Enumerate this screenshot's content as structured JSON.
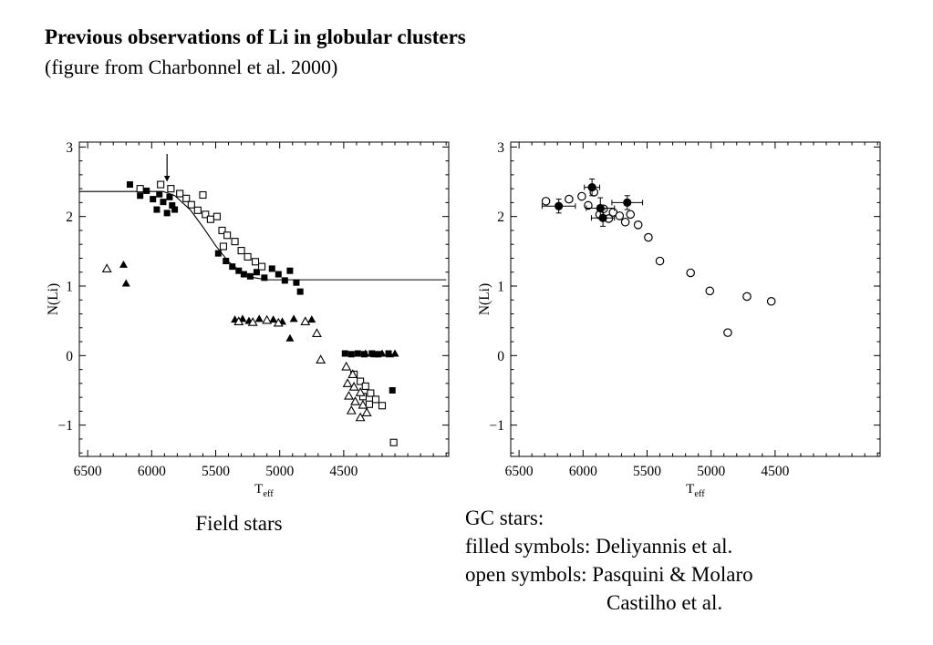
{
  "slide": {
    "title": "Previous observations of Li in globular clusters",
    "subtitle": "(figure from Charbonnel et al. 2000)"
  },
  "captions": {
    "left": "Field stars",
    "right_lines": [
      "GC stars:",
      "filled symbols: Deliyannis et al.",
      "open symbols: Pasquini & Molaro",
      "Castilho et al."
    ]
  },
  "chart_data": [
    {
      "type": "scatter",
      "name": "field-stars",
      "title": "",
      "xlabel": "T",
      "xlabel_sub": "eff",
      "ylabel": "N(Li)",
      "xlim": [
        6565,
        3680
      ],
      "ylim": [
        -1.45,
        3.07
      ],
      "xticks": [
        6500,
        6000,
        5500,
        5000,
        4500
      ],
      "yticks": [
        -1,
        0,
        1,
        2,
        3
      ],
      "grid": false,
      "series": [
        {
          "name": "filled squares",
          "symbol": "filled-square",
          "points": [
            [
              6170,
              2.46
            ],
            [
              6090,
              2.3
            ],
            [
              6040,
              2.37
            ],
            [
              5990,
              2.25
            ],
            [
              5960,
              2.1
            ],
            [
              5940,
              2.32
            ],
            [
              5910,
              2.21
            ],
            [
              5880,
              2.05
            ],
            [
              5860,
              2.28
            ],
            [
              5840,
              2.16
            ],
            [
              5820,
              2.1
            ],
            [
              5480,
              1.47
            ],
            [
              5420,
              1.36
            ],
            [
              5370,
              1.28
            ],
            [
              5320,
              1.22
            ],
            [
              5280,
              1.17
            ],
            [
              5230,
              1.14
            ],
            [
              5180,
              1.2
            ],
            [
              5120,
              1.12
            ],
            [
              5060,
              1.25
            ],
            [
              5010,
              1.17
            ],
            [
              4960,
              1.08
            ],
            [
              4920,
              1.22
            ],
            [
              4870,
              1.05
            ],
            [
              4840,
              0.92
            ],
            [
              4490,
              0.03
            ],
            [
              4440,
              0.02
            ],
            [
              4390,
              0.03
            ],
            [
              4340,
              0.02
            ],
            [
              4280,
              0.03
            ],
            [
              4230,
              0.02
            ],
            [
              4150,
              0.03
            ],
            [
              4120,
              -0.5
            ]
          ]
        },
        {
          "name": "open squares",
          "symbol": "open-square",
          "points": [
            [
              6090,
              2.4
            ],
            [
              5930,
              2.46
            ],
            [
              5850,
              2.4
            ],
            [
              5780,
              2.33
            ],
            [
              5730,
              2.26
            ],
            [
              5690,
              2.17
            ],
            [
              5640,
              2.09
            ],
            [
              5600,
              2.31
            ],
            [
              5580,
              2.03
            ],
            [
              5540,
              1.96
            ],
            [
              5490,
              2.0
            ],
            [
              5450,
              1.8
            ],
            [
              5410,
              1.73
            ],
            [
              5440,
              1.57
            ],
            [
              5350,
              1.64
            ],
            [
              5300,
              1.51
            ],
            [
              5250,
              1.42
            ],
            [
              5190,
              1.35
            ],
            [
              5140,
              1.28
            ],
            [
              4420,
              -0.27
            ],
            [
              4370,
              -0.37
            ],
            [
              4330,
              -0.44
            ],
            [
              4290,
              -0.54
            ],
            [
              4350,
              -0.59
            ],
            [
              4300,
              -0.7
            ],
            [
              4250,
              -0.63
            ],
            [
              4200,
              -0.72
            ],
            [
              4110,
              -1.25
            ]
          ]
        },
        {
          "name": "filled triangles",
          "symbol": "filled-triangle",
          "points": [
            [
              6220,
              1.31
            ],
            [
              6200,
              1.04
            ],
            [
              5350,
              0.52
            ],
            [
              5290,
              0.53
            ],
            [
              5240,
              0.5
            ],
            [
              5160,
              0.53
            ],
            [
              5050,
              0.52
            ],
            [
              4980,
              0.49
            ],
            [
              4890,
              0.53
            ],
            [
              4750,
              0.52
            ],
            [
              4920,
              0.25
            ],
            [
              4330,
              0.03
            ],
            [
              4260,
              0.02
            ],
            [
              4200,
              0.03
            ],
            [
              4140,
              0.02
            ],
            [
              4100,
              0.03
            ]
          ]
        },
        {
          "name": "open triangles",
          "symbol": "open-triangle",
          "points": [
            [
              6350,
              1.25
            ],
            [
              5320,
              0.49
            ],
            [
              5210,
              0.48
            ],
            [
              5100,
              0.51
            ],
            [
              5010,
              0.47
            ],
            [
              4800,
              0.49
            ],
            [
              4710,
              0.32
            ],
            [
              4680,
              -0.06
            ],
            [
              4480,
              -0.16
            ],
            [
              4430,
              -0.27
            ],
            [
              4470,
              -0.4
            ],
            [
              4420,
              -0.45
            ],
            [
              4370,
              -0.53
            ],
            [
              4460,
              -0.58
            ],
            [
              4410,
              -0.66
            ],
            [
              4350,
              -0.71
            ],
            [
              4440,
              -0.79
            ],
            [
              4320,
              -0.82
            ],
            [
              4370,
              -0.89
            ]
          ]
        }
      ],
      "line": [
        [
          6565,
          2.36
        ],
        [
          5910,
          2.36
        ],
        [
          5820,
          2.3
        ],
        [
          5700,
          2.1
        ],
        [
          5600,
          1.85
        ],
        [
          5500,
          1.58
        ],
        [
          5400,
          1.35
        ],
        [
          5300,
          1.2
        ],
        [
          5200,
          1.12
        ],
        [
          5100,
          1.09
        ],
        [
          3700,
          1.09
        ]
      ],
      "arrow": {
        "x": 5880,
        "from": 2.9,
        "to": 2.5
      }
    },
    {
      "type": "scatter",
      "name": "gc-stars",
      "title": "",
      "xlabel": "T",
      "xlabel_sub": "eff",
      "ylabel": "N(Li)",
      "xlim": [
        6565,
        3680
      ],
      "ylim": [
        -1.45,
        3.07
      ],
      "xticks": [
        6500,
        6000,
        5500,
        5000,
        4500
      ],
      "yticks": [
        -1,
        0,
        1,
        2,
        3
      ],
      "grid": false,
      "series": [
        {
          "name": "open symbols (Pasquini & Molaro; Castilho et al.)",
          "symbol": "open-circle",
          "points": [
            [
              6290,
              2.22
            ],
            [
              6110,
              2.25
            ],
            [
              6010,
              2.29
            ],
            [
              5960,
              2.16
            ],
            [
              5915,
              2.35
            ],
            [
              5870,
              2.03
            ],
            [
              5840,
              2.11
            ],
            [
              5800,
              1.97
            ],
            [
              5765,
              2.06
            ],
            [
              5715,
              2.01
            ],
            [
              5670,
              1.92
            ],
            [
              5630,
              2.03
            ],
            [
              5570,
              1.88
            ],
            [
              5490,
              1.7
            ],
            [
              5400,
              1.36
            ],
            [
              5160,
              1.19
            ],
            [
              5010,
              0.93
            ],
            [
              4870,
              0.33
            ],
            [
              4720,
              0.85
            ],
            [
              4530,
              0.78
            ]
          ]
        },
        {
          "name": "filled symbols (Deliyannis et al.)",
          "symbol": "filled-circle",
          "points": [
            [
              6190,
              2.15,
              130,
              0.1
            ],
            [
              5930,
              2.42,
              60,
              0.12
            ],
            [
              5865,
              2.12,
              110,
              0.15
            ],
            [
              5845,
              1.98,
              90,
              0.12
            ],
            [
              5655,
              2.2,
              120,
              0.1
            ]
          ]
        }
      ]
    }
  ]
}
